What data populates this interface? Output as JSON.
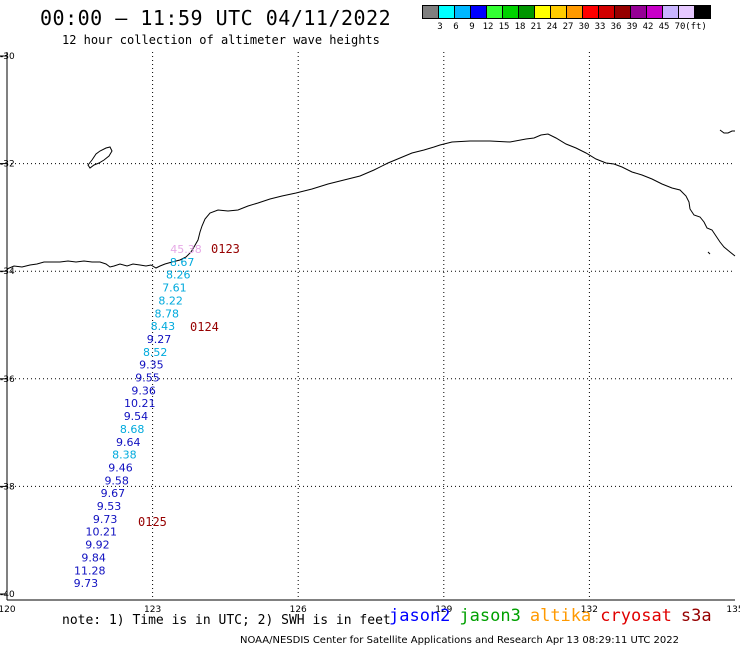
{
  "header": {
    "title": "00:00 – 11:59 UTC 04/11/2022",
    "subtitle": "12 hour collection of altimeter wave heights"
  },
  "legend": {
    "colors": [
      "#7f7f7f",
      "#00ffff",
      "#00b7ff",
      "#0000ff",
      "#33ff33",
      "#00d200",
      "#009600",
      "#ffff00",
      "#ffcc00",
      "#ff9900",
      "#ff0000",
      "#d20000",
      "#960000",
      "#960096",
      "#c800c8",
      "#c8b4ff",
      "#e6c8ff",
      "#000000"
    ],
    "labels": [
      "3",
      "6",
      "9",
      "12",
      "15",
      "18",
      "21",
      "24",
      "27",
      "30",
      "33",
      "36",
      "39",
      "42",
      "45",
      "70",
      "(ft)"
    ]
  },
  "map": {
    "lat_labels": [
      "-30",
      "-32",
      "-34",
      "-36",
      "-38",
      "-40"
    ],
    "lon_labels": [
      "120",
      "123",
      "126",
      "129",
      "132",
      "135"
    ],
    "pass_labels": [
      {
        "text": "0123",
        "color": "#960000"
      },
      {
        "text": "0124",
        "color": "#960000"
      },
      {
        "text": "0125",
        "color": "#960000"
      }
    ],
    "swh_values": [
      {
        "text": "45.38",
        "color": "#e6a8e6"
      },
      {
        "text": "8.67",
        "color": "#00aadd"
      },
      {
        "text": "8.26",
        "color": "#00aadd"
      },
      {
        "text": "7.61",
        "color": "#00aadd"
      },
      {
        "text": "8.22",
        "color": "#00aadd"
      },
      {
        "text": "8.78",
        "color": "#00aadd"
      },
      {
        "text": "8.43",
        "color": "#00aadd"
      },
      {
        "text": "9.27",
        "color": "#1010c0"
      },
      {
        "text": "8.52",
        "color": "#00aadd"
      },
      {
        "text": "9.35",
        "color": "#1010c0"
      },
      {
        "text": "9.55",
        "color": "#1010c0"
      },
      {
        "text": "9.36",
        "color": "#1010c0"
      },
      {
        "text": "10.21",
        "color": "#1010c0"
      },
      {
        "text": "9.54",
        "color": "#1010c0"
      },
      {
        "text": "8.68",
        "color": "#00aadd"
      },
      {
        "text": "9.64",
        "color": "#1010c0"
      },
      {
        "text": "8.38",
        "color": "#00aadd"
      },
      {
        "text": "9.46",
        "color": "#1010c0"
      },
      {
        "text": "9.58",
        "color": "#1010c0"
      },
      {
        "text": "9.67",
        "color": "#1010c0"
      },
      {
        "text": "9.53",
        "color": "#1010c0"
      },
      {
        "text": "9.73",
        "color": "#1010c0"
      },
      {
        "text": "10.21",
        "color": "#1010c0"
      },
      {
        "text": "9.92",
        "color": "#1010c0"
      },
      {
        "text": "9.84",
        "color": "#1010c0"
      },
      {
        "text": "11.28",
        "color": "#1010c0"
      },
      {
        "text": "9.73",
        "color": "#1010c0"
      }
    ]
  },
  "footer": {
    "note": "note: 1) Time is in UTC; 2) SWH is in feet",
    "satellites": [
      {
        "name": "jason2",
        "color": "#0000ff"
      },
      {
        "name": "jason3",
        "color": "#00a000"
      },
      {
        "name": "altika",
        "color": "#ff9900"
      },
      {
        "name": "cryosat",
        "color": "#e00000"
      },
      {
        "name": "s3a",
        "color": "#960000"
      }
    ],
    "credit": "NOAA/NESDIS Center for Satellite Applications and Research   Apr 13 08:29:11 UTC 2022"
  }
}
